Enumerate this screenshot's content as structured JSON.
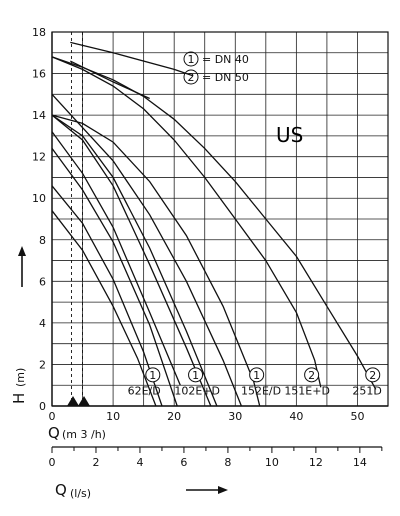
{
  "chart_data": {
    "type": "line",
    "xlabel_main": "Q",
    "xlabel_unit": "(m 3 /h)",
    "xlabel2_main": "Q",
    "xlabel2_unit": "(l/s)",
    "ylabel_main": "H",
    "ylabel_unit": "(m)",
    "xlim": [
      0,
      55
    ],
    "ylim": [
      0,
      18
    ],
    "xlim2": [
      0,
      15.28
    ],
    "x_ticks": [
      "0",
      "10",
      "20",
      "30",
      "40",
      "50"
    ],
    "y_ticks": [
      "0",
      "2",
      "4",
      "6",
      "8",
      "10",
      "12",
      "14",
      "16",
      "18"
    ],
    "x2_ticks": [
      "0",
      "2",
      "4",
      "6",
      "8",
      "10",
      "12",
      "14"
    ],
    "region_label": "US",
    "legend": [
      {
        "mark": "1",
        "text": "= DN 40"
      },
      {
        "mark": "2",
        "text": "= DN 50"
      }
    ],
    "grid": true,
    "dashed_x": [
      3.2,
      5
    ],
    "series": [
      {
        "label": "62E/D",
        "mark": "1",
        "points": [
          [
            0,
            9.4
          ],
          [
            5,
            7.5
          ],
          [
            10,
            4.8
          ],
          [
            14,
            2.3
          ],
          [
            17,
            0
          ]
        ]
      },
      {
        "label": "",
        "mark": "",
        "points": [
          [
            0,
            10.6
          ],
          [
            5,
            8.8
          ],
          [
            10,
            6.1
          ],
          [
            15,
            2.6
          ],
          [
            18,
            0
          ]
        ]
      },
      {
        "label": "102E+D",
        "mark": "1",
        "points": [
          [
            0,
            13.2
          ],
          [
            5,
            11.2
          ],
          [
            10,
            8.6
          ],
          [
            16,
            4.5
          ],
          [
            21,
            1
          ]
        ]
      },
      {
        "label": "",
        "mark": "",
        "points": [
          [
            0,
            12.4
          ],
          [
            5,
            10.4
          ],
          [
            10,
            7.9
          ],
          [
            16,
            3.9
          ],
          [
            20.5,
            0
          ]
        ]
      },
      {
        "label": "152E/D",
        "mark": "1",
        "points": [
          [
            0,
            14
          ],
          [
            5,
            12.8
          ],
          [
            10,
            10.6
          ],
          [
            16,
            6.8
          ],
          [
            22,
            2.8
          ],
          [
            26,
            0
          ]
        ]
      },
      {
        "label": "",
        "mark": "",
        "points": [
          [
            0,
            14
          ],
          [
            5,
            13
          ],
          [
            10,
            11
          ],
          [
            16,
            7.6
          ],
          [
            22,
            3.6
          ],
          [
            27,
            0
          ]
        ]
      },
      {
        "label": "151E+D",
        "mark": "2",
        "points": [
          [
            0,
            15
          ],
          [
            5,
            13.4
          ],
          [
            10,
            11.8
          ],
          [
            16,
            9.2
          ],
          [
            22,
            6
          ],
          [
            28,
            2.2
          ],
          [
            31,
            0
          ]
        ]
      },
      {
        "label": "",
        "mark": "",
        "points": [
          [
            0,
            14
          ],
          [
            5,
            13.6
          ],
          [
            10,
            12.7
          ],
          [
            16,
            10.8
          ],
          [
            22,
            8.2
          ],
          [
            28,
            4.8
          ],
          [
            33,
            1.2
          ],
          [
            34,
            0
          ]
        ]
      },
      {
        "label": "251D",
        "mark": "2",
        "points": [
          [
            0,
            16.8
          ],
          [
            5,
            16.2
          ],
          [
            10,
            15.4
          ],
          [
            15,
            14.3
          ],
          [
            20,
            12.8
          ],
          [
            25,
            11
          ],
          [
            30,
            9
          ],
          [
            35,
            7
          ],
          [
            40,
            4.5
          ],
          [
            43,
            2.2
          ],
          [
            44,
            0.9
          ]
        ]
      },
      {
        "label": "",
        "mark": "",
        "points": [
          [
            0,
            16.8
          ],
          [
            5,
            16.3
          ],
          [
            10,
            15.7
          ],
          [
            15,
            14.9
          ],
          [
            20,
            13.8
          ],
          [
            25,
            12.4
          ],
          [
            30,
            10.8
          ],
          [
            35,
            9
          ],
          [
            40,
            7.2
          ],
          [
            45,
            4.8
          ],
          [
            50,
            2.4
          ],
          [
            53,
            0.8
          ]
        ]
      },
      {
        "label": "",
        "mark": "",
        "points": [
          [
            3,
            17.5
          ],
          [
            10,
            17
          ],
          [
            20,
            16.2
          ],
          [
            23,
            15.9
          ]
        ]
      },
      {
        "label": "",
        "mark": "",
        "points": [
          [
            3,
            16.6
          ],
          [
            10,
            15.6
          ],
          [
            16,
            14.8
          ]
        ]
      }
    ],
    "curve_labels": [
      {
        "text": "62E/D",
        "x": 17.8
      },
      {
        "text": "102E+D",
        "x": 27.5
      },
      {
        "text": "152E/D",
        "x": 37.5
      },
      {
        "text": "151E+D",
        "x": 45.5
      },
      {
        "text": "251D",
        "x": 54
      }
    ],
    "bottom_marks": [
      {
        "mark": "1",
        "x": 16.5
      },
      {
        "mark": "1",
        "x": 23.5
      },
      {
        "mark": "1",
        "x": 33.5
      },
      {
        "mark": "2",
        "x": 42.5
      },
      {
        "mark": "2",
        "x": 52.5
      }
    ]
  }
}
